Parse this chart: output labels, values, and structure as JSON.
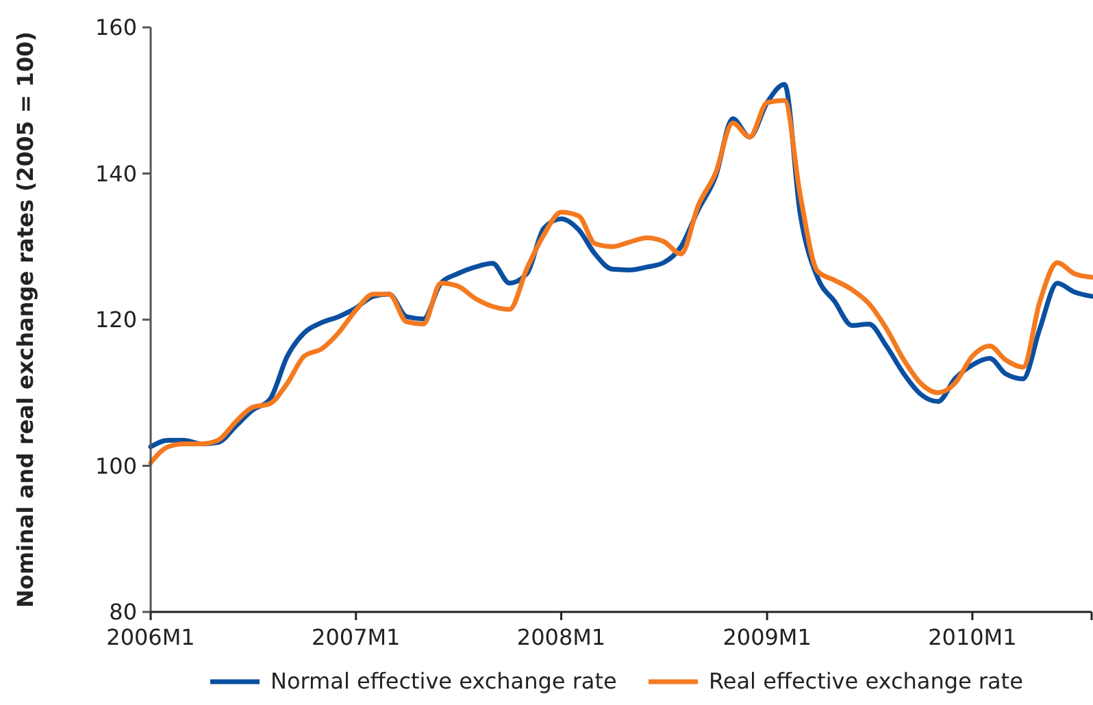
{
  "chart_data": {
    "type": "line",
    "ylabel": "Nominal and real exchange rates (2005 = 100)",
    "x": [
      "2006-01",
      "2006-02",
      "2006-03",
      "2006-04",
      "2006-05",
      "2006-06",
      "2006-07",
      "2006-08",
      "2006-09",
      "2006-10",
      "2006-11",
      "2006-12",
      "2007-01",
      "2007-02",
      "2007-03",
      "2007-04",
      "2007-05",
      "2007-06",
      "2007-07",
      "2007-08",
      "2007-09",
      "2007-10",
      "2007-11",
      "2007-12",
      "2008-01",
      "2008-02",
      "2008-03",
      "2008-04",
      "2008-05",
      "2008-06",
      "2008-07",
      "2008-08",
      "2008-09",
      "2008-10",
      "2008-11",
      "2008-12",
      "2009-01",
      "2009-02",
      "2009-03",
      "2009-04",
      "2009-05",
      "2009-06",
      "2009-07",
      "2009-08",
      "2009-09",
      "2009-10",
      "2009-11",
      "2009-12",
      "2010-01",
      "2010-02",
      "2010-03",
      "2010-04",
      "2010-05",
      "2010-06",
      "2010-07",
      "2010-08"
    ],
    "series": [
      {
        "name": "Normal effective exchange rate",
        "color": "#0a4fa0",
        "values": [
          102.6,
          103.5,
          103.5,
          103,
          103.2,
          105.4,
          107.6,
          109.1,
          115,
          118.2,
          119.6,
          120.4,
          121.6,
          123.2,
          123.5,
          120.4,
          120.1,
          125,
          126.3,
          127.2,
          127.7,
          125,
          126.3,
          132.5,
          133.8,
          132.3,
          129,
          126.9,
          126.8,
          127.2,
          127.8,
          130,
          135.1,
          139.5,
          147.5,
          145,
          149.7,
          152.2,
          134.4,
          125.7,
          122.5,
          119.2,
          119.4,
          116.4,
          112.6,
          109.8,
          108.8,
          111.9,
          113.8,
          114.7,
          112.6,
          111.9,
          118.8,
          125,
          123.8,
          123.2
        ]
      },
      {
        "name": "Real effective exchange rate",
        "color": "#f47a20",
        "values": [
          100.4,
          102.6,
          103,
          103,
          103.5,
          106,
          108,
          108.5,
          111.3,
          115,
          116,
          118.2,
          121.3,
          123.5,
          123.5,
          119.7,
          119.4,
          125,
          124.6,
          122.9,
          121.8,
          121.4,
          127,
          131.6,
          134.7,
          134.2,
          130.4,
          130,
          130.6,
          131.2,
          130.7,
          129,
          135.7,
          140,
          146.9,
          145,
          149.7,
          150,
          137,
          126.6,
          125.4,
          124.1,
          122.2,
          118.8,
          114.5,
          111.3,
          110,
          111.3,
          115,
          116.4,
          114.5,
          113.5,
          122.5,
          127.8,
          126.3,
          125.8
        ]
      }
    ],
    "xlim": [
      "2006-01",
      "2010-08"
    ],
    "xticks": [
      {
        "value": "2006-01",
        "label": "2006M1"
      },
      {
        "value": "2007-01",
        "label": "2007M1"
      },
      {
        "value": "2008-01",
        "label": "2008M1"
      },
      {
        "value": "2009-01",
        "label": "2009M1"
      },
      {
        "value": "2010-01",
        "label": "2010M1"
      },
      {
        "value": "2010-08",
        "label": null
      }
    ],
    "ylim": [
      80,
      160
    ],
    "yticks": [
      80,
      100,
      120,
      140,
      160
    ],
    "grid": false,
    "legend": "bottom",
    "line_style": "solid",
    "marker": "none"
  }
}
